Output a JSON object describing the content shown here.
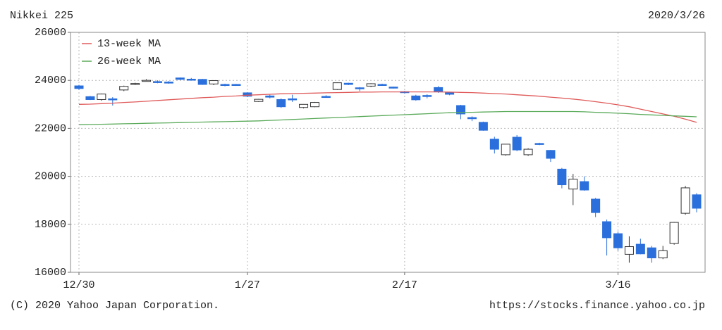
{
  "chart_data": {
    "type": "candlestick",
    "title": "Nikkei 225",
    "date": "2020/3/26",
    "categories": [
      "12/30",
      null,
      null,
      null,
      null,
      null,
      null,
      null,
      null,
      null,
      null,
      null,
      null,
      null,
      null,
      "1/27",
      null,
      null,
      null,
      null,
      null,
      null,
      null,
      null,
      null,
      null,
      null,
      null,
      null,
      "2/17",
      null,
      null,
      null,
      null,
      null,
      null,
      null,
      null,
      null,
      null,
      null,
      null,
      null,
      null,
      null,
      null,
      null,
      null,
      "3/16",
      null,
      null,
      null,
      null,
      null,
      null,
      null
    ],
    "open": [
      23770,
      23320,
      23200,
      23230,
      23600,
      23850,
      23990,
      23950,
      23930,
      24100,
      24050,
      24040,
      23850,
      23830,
      23830,
      23480,
      23120,
      23350,
      23200,
      23230,
      22870,
      22900,
      23330,
      23620,
      23880,
      23690,
      23760,
      23830,
      23720,
      23530,
      23350,
      23370,
      23700,
      23480,
      22950,
      22450,
      22250,
      21550,
      20900,
      21630,
      20900,
      21370,
      21080,
      20300,
      19470,
      19780,
      19050,
      18110,
      17610,
      16750,
      17170,
      17020,
      16600,
      17200,
      18460,
      19230
    ],
    "high": [
      23810,
      23350,
      23450,
      23300,
      23780,
      23900,
      24050,
      24000,
      23970,
      24120,
      24100,
      24060,
      24010,
      23860,
      23850,
      23500,
      23230,
      23400,
      23250,
      23400,
      23010,
      23100,
      23380,
      23910,
      23900,
      23720,
      23880,
      23860,
      23740,
      23560,
      23400,
      23420,
      23760,
      23500,
      22980,
      22500,
      22280,
      21650,
      21350,
      21720,
      21170,
      21400,
      21100,
      20350,
      20100,
      20000,
      19100,
      18200,
      17700,
      17500,
      17400,
      17100,
      17100,
      18100,
      19600,
      19300
    ],
    "low": [
      23600,
      23180,
      23150,
      22950,
      23550,
      23800,
      23950,
      23880,
      23860,
      24010,
      23990,
      23810,
      23800,
      23750,
      23770,
      23300,
      23100,
      23250,
      22850,
      23100,
      22830,
      22880,
      23280,
      23600,
      23800,
      23550,
      23720,
      23780,
      23660,
      23450,
      23150,
      23250,
      23480,
      23380,
      22380,
      22300,
      21900,
      20950,
      20860,
      21050,
      20850,
      21300,
      20600,
      19500,
      18800,
      19400,
      18300,
      16700,
      16900,
      16400,
      16750,
      16400,
      16550,
      17150,
      18400,
      18500
    ],
    "close": [
      23660,
      23200,
      23430,
      23200,
      23750,
      23870,
      24000,
      23920,
      23900,
      24040,
      24030,
      23830,
      23990,
      23800,
      23810,
      23340,
      23210,
      23300,
      22900,
      23200,
      23000,
      23080,
      23320,
      23900,
      23830,
      23650,
      23860,
      23820,
      23690,
      23520,
      23190,
      23360,
      23520,
      23420,
      22600,
      22400,
      21920,
      21130,
      21340,
      21100,
      21130,
      21330,
      20750,
      19650,
      19880,
      19430,
      18490,
      17440,
      17020,
      17070,
      16770,
      16600,
      16900,
      18080,
      19520,
      18670
    ],
    "up_color": "#ffffff",
    "down_color": "#2a6fdb",
    "lines": [
      {
        "name": "13-week MA",
        "color": "#e05a5a",
        "values": [
          23000,
          23010,
          23030,
          23050,
          23080,
          23100,
          23130,
          23160,
          23190,
          23220,
          23250,
          23280,
          23300,
          23330,
          23350,
          23380,
          23400,
          23420,
          23440,
          23450,
          23460,
          23470,
          23480,
          23490,
          23500,
          23510,
          23510,
          23520,
          23520,
          23520,
          23520,
          23520,
          23520,
          23510,
          23500,
          23490,
          23470,
          23450,
          23430,
          23400,
          23370,
          23340,
          23300,
          23260,
          23220,
          23170,
          23110,
          23050,
          22980,
          22900,
          22800,
          22700,
          22600,
          22500,
          22380,
          22250
        ]
      },
      {
        "name": "26-week MA",
        "color": "#5aaa5a",
        "values": [
          22150,
          22160,
          22170,
          22180,
          22190,
          22200,
          22210,
          22220,
          22230,
          22240,
          22250,
          22260,
          22270,
          22280,
          22290,
          22300,
          22310,
          22330,
          22350,
          22370,
          22390,
          22410,
          22430,
          22450,
          22470,
          22490,
          22510,
          22530,
          22550,
          22570,
          22590,
          22610,
          22630,
          22650,
          22660,
          22670,
          22680,
          22690,
          22700,
          22700,
          22700,
          22700,
          22700,
          22700,
          22700,
          22690,
          22670,
          22650,
          22630,
          22610,
          22580,
          22560,
          22540,
          22520,
          22500,
          22480
        ]
      }
    ],
    "ylim": [
      16000,
      26000
    ],
    "yticks": [
      16000,
      18000,
      20000,
      22000,
      24000,
      26000
    ],
    "grid": true
  },
  "footer": {
    "copyright": "(C) 2020 Yahoo Japan Corporation.",
    "url": "https://stocks.finance.yahoo.co.jp"
  }
}
